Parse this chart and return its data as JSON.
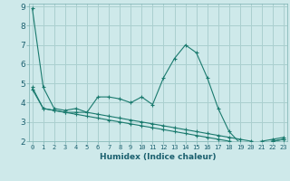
{
  "xlabel": "Humidex (Indice chaleur)",
  "background_color": "#cee9ea",
  "grid_color": "#aacfcf",
  "line_color": "#1a7a6e",
  "x": [
    0,
    1,
    2,
    3,
    4,
    5,
    6,
    7,
    8,
    9,
    10,
    11,
    12,
    13,
    14,
    15,
    16,
    17,
    18,
    19,
    20,
    21,
    22,
    23
  ],
  "series1": [
    8.9,
    4.8,
    3.7,
    3.6,
    3.7,
    3.5,
    4.3,
    4.3,
    4.2,
    4.0,
    4.3,
    3.9,
    5.3,
    6.3,
    7.0,
    6.6,
    5.3,
    3.7,
    2.5,
    1.9,
    1.9,
    2.0,
    2.1,
    2.2
  ],
  "series2": [
    4.8,
    3.7,
    3.6,
    3.5,
    3.5,
    3.5,
    3.4,
    3.3,
    3.2,
    3.1,
    3.0,
    2.9,
    2.8,
    2.7,
    2.6,
    2.5,
    2.4,
    2.3,
    2.2,
    2.1,
    2.0,
    1.9,
    2.0,
    2.1
  ],
  "series3": [
    4.7,
    3.7,
    3.6,
    3.5,
    3.4,
    3.3,
    3.2,
    3.1,
    3.0,
    2.9,
    2.8,
    2.7,
    2.6,
    2.5,
    2.4,
    2.3,
    2.2,
    2.1,
    2.0,
    1.9,
    1.9,
    1.9,
    2.0,
    2.1
  ],
  "ylim": [
    2,
    9
  ],
  "xlim": [
    -0.3,
    23.3
  ],
  "yticks": [
    2,
    3,
    4,
    5,
    6,
    7,
    8,
    9
  ],
  "xticks": [
    0,
    1,
    2,
    3,
    4,
    5,
    6,
    7,
    8,
    9,
    10,
    11,
    12,
    13,
    14,
    15,
    16,
    17,
    18,
    19,
    20,
    21,
    22,
    23
  ],
  "xtick_labels": [
    "0",
    "1",
    "2",
    "3",
    "4",
    "5",
    "6",
    "7",
    "8",
    "9",
    "10",
    "11",
    "12",
    "13",
    "14",
    "15",
    "16",
    "17",
    "18",
    "19",
    "20",
    "21",
    "22",
    "23"
  ],
  "tick_color": "#1a5f6e",
  "xlabel_fontsize": 6.5,
  "xtick_fontsize": 5.0,
  "ytick_fontsize": 6.5
}
